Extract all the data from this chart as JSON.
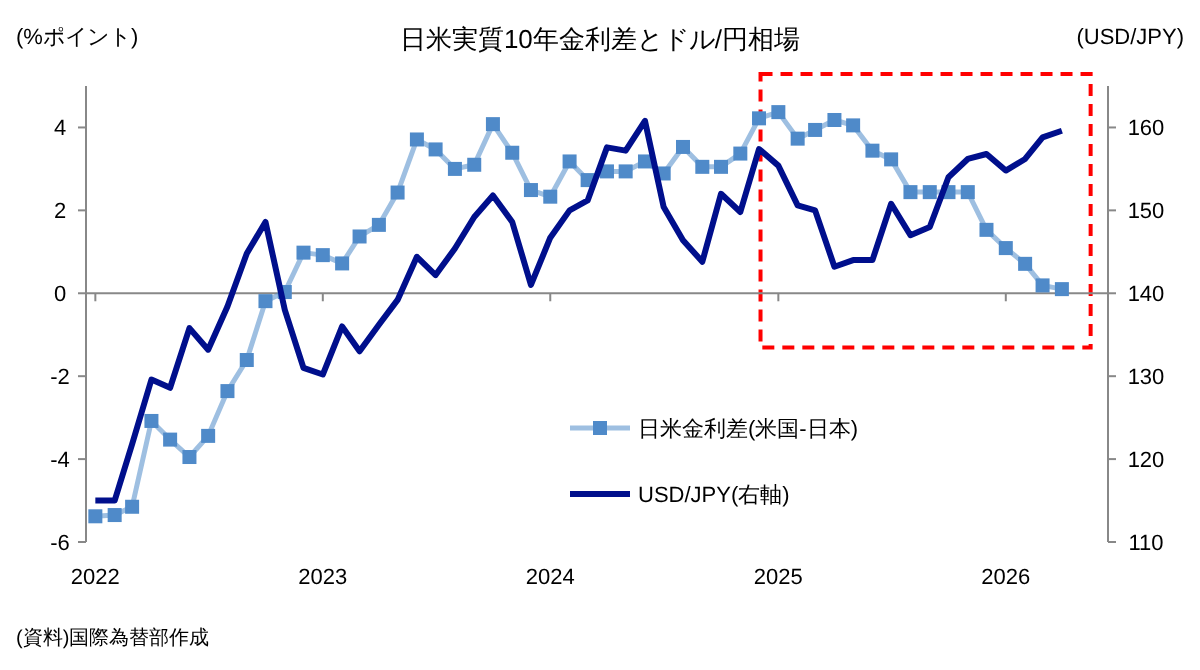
{
  "chart_data": {
    "type": "line",
    "title": "日米実質10年金利差とドル/円相場",
    "ylabel": "(%ポイント)",
    "y2label": "(USD/JPY)",
    "annotations": [
      "(資料)国際為替部作成"
    ],
    "x": [
      "2022-01",
      "2022-02",
      "2022-03",
      "2022-04",
      "2022-05",
      "2022-06",
      "2022-07",
      "2022-08",
      "2022-09",
      "2022-10",
      "2022-11",
      "2022-12",
      "2023-01",
      "2023-02",
      "2023-03",
      "2023-04",
      "2023-05",
      "2023-06",
      "2023-07",
      "2023-08",
      "2023-09",
      "2023-10",
      "2023-11",
      "2023-12",
      "2024-01",
      "2024-02",
      "2024-03",
      "2024-04",
      "2024-05",
      "2024-06",
      "2024-07",
      "2024-08",
      "2024-09",
      "2024-10",
      "2024-11",
      "2024-12",
      "2025-01",
      "2025-02",
      "2025-03",
      "2025-04",
      "2025-05",
      "2025-06",
      "2025-07",
      "2025-08",
      "2025-09",
      "2025-10",
      "2025-11",
      "2025-12",
      "2026-01",
      "2026-02",
      "2026-03",
      "2026-04"
    ],
    "series": [
      {
        "name": "日米金利差(米国-日本)",
        "color": "#4f8ac9",
        "marker": "square",
        "values": [
          -5.38,
          -5.35,
          -5.15,
          -3.08,
          -3.53,
          -3.95,
          -3.44,
          -2.36,
          -1.61,
          -0.19,
          0.03,
          0.98,
          0.92,
          0.72,
          1.37,
          1.65,
          2.43,
          3.71,
          3.47,
          3.0,
          3.1,
          4.08,
          3.39,
          2.49,
          2.33,
          3.18,
          2.73,
          2.94,
          2.94,
          3.18,
          2.89,
          3.53,
          3.05,
          3.05,
          3.37,
          4.22,
          4.37,
          3.73,
          3.94,
          4.18,
          4.05,
          3.44,
          3.23,
          2.44,
          2.44,
          2.44,
          2.44,
          1.53,
          1.09,
          0.71,
          0.19,
          0.1
        ]
      },
      {
        "name": "USD/JPY(右軸)",
        "color": "#000f8c",
        "axis": "y2",
        "values": [
          115,
          115,
          121.8,
          129.6,
          128.6,
          135.8,
          133.2,
          138.4,
          144.8,
          148.6,
          138,
          131,
          130.2,
          136,
          133,
          136.2,
          139.2,
          144.4,
          142.2,
          145.4,
          149.2,
          151.8,
          148.6,
          141,
          146.7,
          150,
          151.2,
          157.6,
          157.2,
          160.8,
          150.4,
          146.4,
          143.8,
          152,
          149.8,
          157.4,
          155.4,
          150.6,
          150,
          143.2,
          144,
          144,
          150.8,
          147,
          148,
          154,
          156.2,
          156.8,
          154.8,
          156.2,
          158.8,
          159.6
        ]
      }
    ],
    "xlim": [
      "2021-12-17",
      "2026-06-14"
    ],
    "xticks": [
      {
        "value": "2022-01",
        "label": "2022"
      },
      {
        "value": "2023-01",
        "label": "2023"
      },
      {
        "value": "2024-01",
        "label": "2024"
      },
      {
        "value": "2025-01",
        "label": "2025"
      },
      {
        "value": "2026-01",
        "label": "2026"
      }
    ],
    "ylim": [
      -6,
      5
    ],
    "yticks": [
      -6,
      -4,
      -2,
      0,
      2,
      4
    ],
    "y2lim": [
      110,
      165
    ],
    "y2ticks": [
      110,
      120,
      130,
      140,
      150,
      160
    ],
    "legend": "bottom right",
    "line_style": "solid"
  }
}
